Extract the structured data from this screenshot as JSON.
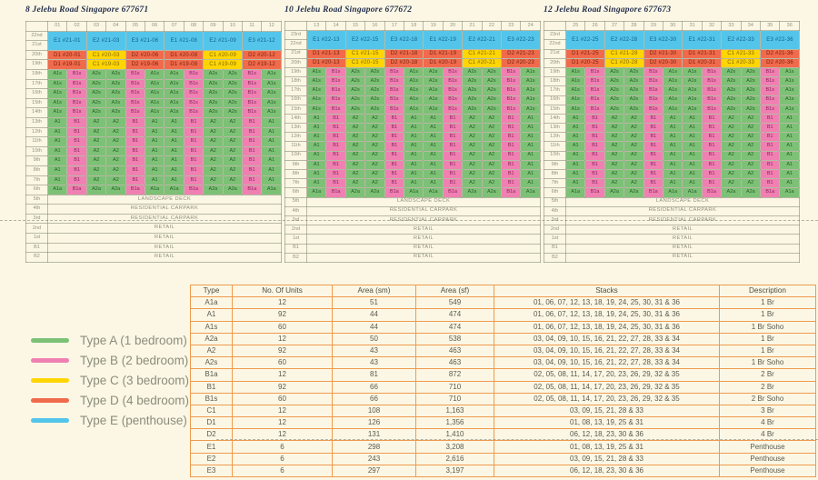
{
  "page": {
    "background": "#fbf7e4"
  },
  "type_colors": {
    "A": "#7cc176",
    "B": "#f080b2",
    "C": "#ffd503",
    "D": "#f16a4c",
    "E": "#54c5ea"
  },
  "type_text": {
    "A": "#295e29",
    "B": "#88215a",
    "C": "#7f6a00",
    "D": "#73230f",
    "E": "#11608a"
  },
  "unit_pattern": [
    "A1",
    "B1",
    "A2",
    "A2",
    "B1",
    "A1",
    "A1",
    "B1",
    "A2",
    "A2",
    "B1",
    "A1"
  ],
  "towers": [
    {
      "title": "8 Jelebu Road Singapore 677671",
      "stacks": [
        "01",
        "02",
        "03",
        "04",
        "05",
        "06",
        "07",
        "08",
        "09",
        "10",
        "11",
        "12"
      ],
      "rows": [
        {
          "kind": "ph",
          "floors": [
            "22nd",
            "21st"
          ],
          "cells": [
            "E1 #21-01",
            "E2 #21-03",
            "E3 #21-06",
            "E1 #21-08",
            "E2 #21-09",
            "E3 #21-12"
          ]
        },
        {
          "kind": "cd",
          "floor": "20th",
          "cells": [
            "D1 #20-01",
            "C1 #20-03",
            "D2 #20-06",
            "D1 #20-08",
            "C1 #20-09",
            "D2 #20-12"
          ]
        },
        {
          "kind": "cd",
          "floor": "19th",
          "cells": [
            "D1 #19-01",
            "C1 #19-03",
            "D2 #19-06",
            "D1 #19-08",
            "C1 #19-09",
            "D2 #19-12"
          ]
        },
        {
          "kind": "u",
          "floor": "18th",
          "suffix": "s"
        },
        {
          "kind": "u",
          "floor": "17th",
          "suffix": "s"
        },
        {
          "kind": "u",
          "floor": "16th",
          "suffix": "s"
        },
        {
          "kind": "u",
          "floor": "15th",
          "suffix": "s"
        },
        {
          "kind": "u",
          "floor": "14th",
          "suffix": "s"
        },
        {
          "kind": "u",
          "floor": "13th",
          "suffix": ""
        },
        {
          "kind": "u",
          "floor": "12th",
          "suffix": ""
        },
        {
          "kind": "u",
          "floor": "11th",
          "suffix": ""
        },
        {
          "kind": "u",
          "floor": "10th",
          "suffix": ""
        },
        {
          "kind": "u",
          "floor": "9th",
          "suffix": ""
        },
        {
          "kind": "u",
          "floor": "8th",
          "suffix": ""
        },
        {
          "kind": "u",
          "floor": "7th",
          "suffix": ""
        },
        {
          "kind": "u",
          "floor": "6th",
          "suffix": "a"
        },
        {
          "kind": "full",
          "floor": "5th",
          "text": "LANDSCAPE DECK"
        },
        {
          "kind": "full",
          "floor": "4th",
          "text": "RESIDENTIAL CARPARK"
        },
        {
          "kind": "full",
          "floor": "3rd",
          "text": "RESIDENTIAL CARPARK"
        },
        {
          "kind": "full",
          "floor": "2nd",
          "text": "RETAIL"
        },
        {
          "kind": "full",
          "floor": "1st",
          "text": "RETAIL"
        },
        {
          "kind": "full",
          "floor": "B1",
          "text": "RETAIL"
        },
        {
          "kind": "full",
          "floor": "B2",
          "text": "RETAIL"
        }
      ]
    },
    {
      "title": "10 Jelebu Road Singapore 677672",
      "stacks": [
        "13",
        "14",
        "15",
        "16",
        "17",
        "18",
        "19",
        "20",
        "21",
        "22",
        "23",
        "24"
      ],
      "rows": [
        {
          "kind": "ph",
          "floors": [
            "23rd",
            "22nd"
          ],
          "cells": [
            "E1 #22-13",
            "E2 #22-15",
            "E3 #22-18",
            "E1 #22-19",
            "E2 #22-21",
            "E3 #22-23"
          ]
        },
        {
          "kind": "cd",
          "floor": "21st",
          "cells": [
            "D1 #21-13",
            "C1 #21-15",
            "D2 #21-18",
            "D1 #21-19",
            "C1 #21-21",
            "D2 #21-23"
          ]
        },
        {
          "kind": "cd",
          "floor": "20th",
          "cells": [
            "D1 #20-13",
            "C1 #20-15",
            "D2 #20-18",
            "D1 #20-19",
            "C1 #20-21",
            "D2 #20-23"
          ]
        },
        {
          "kind": "u",
          "floor": "19th",
          "suffix": "s"
        },
        {
          "kind": "u",
          "floor": "18th",
          "suffix": "s"
        },
        {
          "kind": "u",
          "floor": "17th",
          "suffix": "s"
        },
        {
          "kind": "u",
          "floor": "16th",
          "suffix": "s"
        },
        {
          "kind": "u",
          "floor": "15th",
          "suffix": "s"
        },
        {
          "kind": "u",
          "floor": "14th",
          "suffix": ""
        },
        {
          "kind": "u",
          "floor": "13th",
          "suffix": ""
        },
        {
          "kind": "u",
          "floor": "12th",
          "suffix": ""
        },
        {
          "kind": "u",
          "floor": "11th",
          "suffix": ""
        },
        {
          "kind": "u",
          "floor": "10th",
          "suffix": ""
        },
        {
          "kind": "u",
          "floor": "9th",
          "suffix": ""
        },
        {
          "kind": "u",
          "floor": "8th",
          "suffix": ""
        },
        {
          "kind": "u",
          "floor": "7th",
          "suffix": ""
        },
        {
          "kind": "u",
          "floor": "6th",
          "suffix": "a"
        },
        {
          "kind": "full",
          "floor": "5th",
          "text": "LANDSCAPE DECK"
        },
        {
          "kind": "full",
          "floor": "4th",
          "text": "RESIDENTIAL CARPARK"
        },
        {
          "kind": "full",
          "floor": "3rd",
          "text": "RESIDENTIAL CARPARK"
        },
        {
          "kind": "full",
          "floor": "2nd",
          "text": "RETAIL"
        },
        {
          "kind": "full",
          "floor": "1st",
          "text": "RETAIL"
        },
        {
          "kind": "full",
          "floor": "B1",
          "text": "RETAIL"
        },
        {
          "kind": "full",
          "floor": "B2",
          "text": "RETAIL"
        }
      ]
    },
    {
      "title": "12 Jelebu Road Singapore 677673",
      "stacks": [
        "25",
        "26",
        "27",
        "28",
        "29",
        "30",
        "31",
        "32",
        "33",
        "34",
        "35",
        "36"
      ],
      "rows": [
        {
          "kind": "ph",
          "floors": [
            "23rd",
            "22nd"
          ],
          "cells": [
            "E1 #22-25",
            "E2 #22-28",
            "E3 #22-30",
            "E1 #22-31",
            "E2 #22-33",
            "E3 #22-36"
          ]
        },
        {
          "kind": "cd",
          "floor": "21st",
          "cells": [
            "D1 #21-25",
            "C1 #21-28",
            "D2 #21-30",
            "D1 #21-31",
            "C1 #21-33",
            "D2 #21-36"
          ]
        },
        {
          "kind": "cd",
          "floor": "20th",
          "cells": [
            "D1 #20-25",
            "C1 #20-28",
            "D2 #20-30",
            "D1 #20-31",
            "C1 #20-33",
            "D2 #20-36"
          ]
        },
        {
          "kind": "u",
          "floor": "19th",
          "suffix": "s"
        },
        {
          "kind": "u",
          "floor": "18th",
          "suffix": "s"
        },
        {
          "kind": "u",
          "floor": "17th",
          "suffix": "s"
        },
        {
          "kind": "u",
          "floor": "16th",
          "suffix": "s"
        },
        {
          "kind": "u",
          "floor": "15th",
          "suffix": "s"
        },
        {
          "kind": "u",
          "floor": "14th",
          "suffix": ""
        },
        {
          "kind": "u",
          "floor": "13th",
          "suffix": ""
        },
        {
          "kind": "u",
          "floor": "12th",
          "suffix": ""
        },
        {
          "kind": "u",
          "floor": "11th",
          "suffix": ""
        },
        {
          "kind": "u",
          "floor": "10th",
          "suffix": ""
        },
        {
          "kind": "u",
          "floor": "9th",
          "suffix": ""
        },
        {
          "kind": "u",
          "floor": "8th",
          "suffix": ""
        },
        {
          "kind": "u",
          "floor": "7th",
          "suffix": ""
        },
        {
          "kind": "u",
          "floor": "6th",
          "suffix": "a"
        },
        {
          "kind": "full",
          "floor": "5th",
          "text": "LANDSCAPE DECK"
        },
        {
          "kind": "full",
          "floor": "4th",
          "text": "RESIDENTIAL CARPARK"
        },
        {
          "kind": "full",
          "floor": "3rd",
          "text": "RESIDENTIAL CARPARK"
        },
        {
          "kind": "full",
          "floor": "2nd",
          "text": "RETAIL"
        },
        {
          "kind": "full",
          "floor": "1st",
          "text": "RETAIL"
        },
        {
          "kind": "full",
          "floor": "B1",
          "text": "RETAIL"
        },
        {
          "kind": "full",
          "floor": "B2",
          "text": "RETAIL"
        }
      ]
    }
  ],
  "legend": {
    "items": [
      {
        "type": "A",
        "label": "Type A (1 bedroom)"
      },
      {
        "type": "B",
        "label": "Type B (2 bedroom)"
      },
      {
        "type": "C",
        "label": "Type C (3 bedroom)"
      },
      {
        "type": "D",
        "label": "Type D (4 bedroom)"
      },
      {
        "type": "E",
        "label": "Type E (penthouse)"
      }
    ]
  },
  "summary_table": {
    "headers": [
      "Type",
      "No. Of Units",
      "Area (sm)",
      "Area (sf)",
      "Stacks",
      "Description"
    ],
    "rows": [
      [
        "A1a",
        "12",
        "51",
        "549",
        "01, 06, 07, 12, 13, 18, 19, 24, 25, 30, 31 & 36",
        "1 Br"
      ],
      [
        "A1",
        "92",
        "44",
        "474",
        "01, 06, 07, 12, 13, 18, 19, 24, 25, 30, 31 & 36",
        "1 Br"
      ],
      [
        "A1s",
        "60",
        "44",
        "474",
        "01, 06, 07, 12, 13, 18, 19, 24, 25, 30, 31 & 36",
        "1 Br Soho"
      ],
      [
        "A2a",
        "12",
        "50",
        "538",
        "03, 04, 09, 10, 15, 16, 21, 22, 27, 28, 33 & 34",
        "1 Br"
      ],
      [
        "A2",
        "92",
        "43",
        "463",
        "03, 04, 09, 10, 15, 16, 21, 22, 27, 28, 33 & 34",
        "1 Br"
      ],
      [
        "A2s",
        "60",
        "43",
        "463",
        "03, 04, 09, 10, 15, 16, 21, 22, 27, 28, 33 & 34",
        "1 Br Soho"
      ],
      [
        "B1a",
        "12",
        "81",
        "872",
        "02, 05, 08, 11, 14, 17, 20, 23, 26, 29, 32 & 35",
        "2 Br"
      ],
      [
        "B1",
        "92",
        "66",
        "710",
        "02, 05, 08, 11, 14, 17, 20, 23, 26, 29, 32 & 35",
        "2 Br"
      ],
      [
        "B1s",
        "60",
        "66",
        "710",
        "02, 05, 08, 11, 14, 17, 20, 23, 26, 29, 32 & 35",
        "2 Br Soho"
      ],
      [
        "C1",
        "12",
        "108",
        "1,163",
        "03, 09, 15, 21, 28 & 33",
        "3 Br"
      ],
      [
        "D1",
        "12",
        "126",
        "1,356",
        "01, 08, 13, 19, 25 & 31",
        "4 Br"
      ],
      [
        "D2",
        "12",
        "131",
        "1,410",
        "06, 12, 18, 23, 30 & 36",
        "4 Br"
      ],
      [
        "E1",
        "6",
        "298",
        "3,208",
        "01, 08, 13, 19, 25 & 31",
        "Penthouse"
      ],
      [
        "E2",
        "6",
        "243",
        "2,616",
        "03, 09, 15, 21, 28 & 33",
        "Penthouse"
      ],
      [
        "E3",
        "6",
        "297",
        "3,197",
        "06, 12, 18, 23, 30 & 36",
        "Penthouse"
      ]
    ]
  }
}
